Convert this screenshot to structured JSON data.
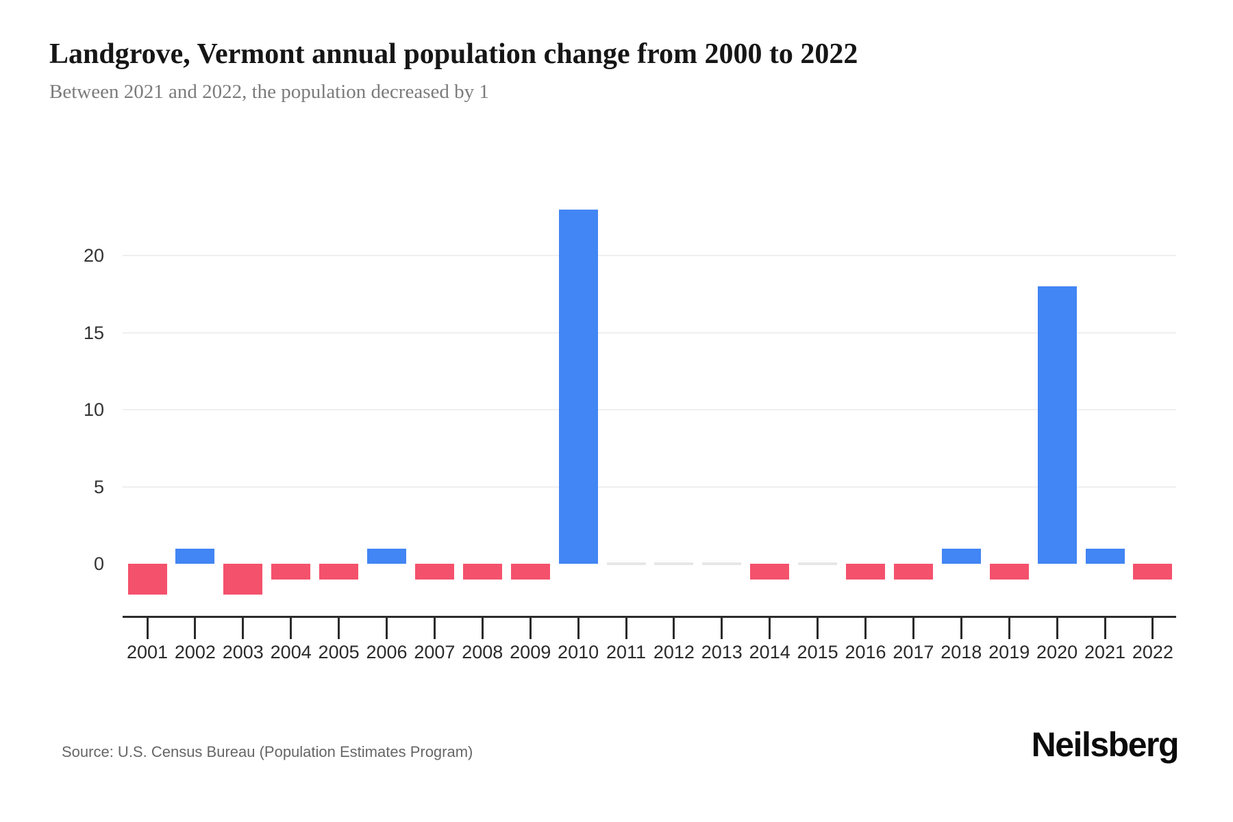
{
  "header": {
    "title": "Landgrove, Vermont annual population change from 2000 to 2022",
    "subtitle": "Between 2021 and 2022, the population decreased by 1"
  },
  "footer": {
    "source": "Source: U.S. Census Bureau (Population Estimates Program)",
    "logo": "Neilsberg"
  },
  "chart_data": {
    "type": "bar",
    "title": "Landgrove, Vermont annual population change from 2000 to 2022",
    "subtitle": "Between 2021 and 2022, the population decreased by 1",
    "xlabel": "",
    "ylabel": "",
    "categories": [
      "2001",
      "2002",
      "2003",
      "2004",
      "2005",
      "2006",
      "2007",
      "2008",
      "2009",
      "2010",
      "2011",
      "2012",
      "2013",
      "2014",
      "2015",
      "2016",
      "2017",
      "2018",
      "2019",
      "2020",
      "2021",
      "2022"
    ],
    "values": [
      -2,
      1,
      -2,
      -1,
      -1,
      1,
      -1,
      -1,
      -1,
      23,
      0,
      0,
      0,
      -1,
      0,
      -1,
      -1,
      1,
      -1,
      18,
      1,
      -1
    ],
    "y_ticks": [
      0,
      5,
      10,
      15,
      20
    ],
    "ylim": [
      -3.5,
      23.5
    ],
    "grid": "horizontal-light",
    "legend": "none",
    "colors": {
      "positive": "#4285f4",
      "negative": "#f4516c",
      "zero_marker": "#e7e7e7",
      "gridline": "#efefef",
      "axis": "#2b2b2b",
      "labels": "#333333"
    }
  }
}
